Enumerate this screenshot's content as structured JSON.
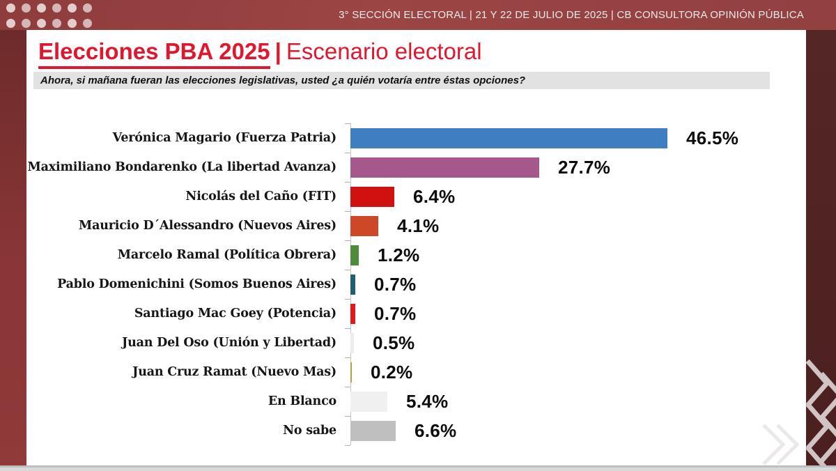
{
  "header": {
    "info_text": "3° SECCIÓN ELECTORAL  | 21 Y 22 DE JULIO DE 2025 | CB CONSULTORA OPINIÓN PÚBLICA"
  },
  "title": {
    "highlight": "Elecciones PBA 2025",
    "separator": "|",
    "rest": "Escenario electoral",
    "accent_color": "#e0172f"
  },
  "question": "Ahora, si mañana fueran las elecciones legislativas, usted ¿a quién votaría entre éstas opciones?",
  "theme": {
    "header_maroon": "#9a4343",
    "frame_maroon_dark": "#4c2020",
    "frame_maroon_left": "#8a3636",
    "question_bg": "#e2e2e2",
    "value_label_color": "#0c0c0c"
  },
  "chart_data": {
    "type": "bar",
    "orientation": "horizontal",
    "title": "Escenario electoral - intención de voto",
    "categories": [
      "Verónica Magario (Fuerza Patria)",
      "Maximiliano Bondarenko (La libertad Avanza)",
      "Nicolás del Caño (FIT)",
      "Mauricio D´Alessandro (Nuevos Aires)",
      "Marcelo Ramal (Política Obrera)",
      "Pablo Domenichini (Somos Buenos Aires)",
      "Santiago Mac Goey (Potencia)",
      "Juan Del Oso (Unión y Libertad)",
      "Juan Cruz Ramat (Nuevo Mas)",
      "En Blanco",
      "No sabe"
    ],
    "values": [
      46.5,
      27.7,
      6.4,
      4.1,
      1.2,
      0.7,
      0.7,
      0.5,
      0.2,
      5.4,
      6.6
    ],
    "value_labels": [
      "46.5%",
      "27.7%",
      "6.4%",
      "4.1%",
      "1.2%",
      "0.7%",
      "0.7%",
      "0.5%",
      "0.2%",
      "5.4%",
      "6.6%"
    ],
    "bar_colors": [
      "#3f7fc1",
      "#a6578b",
      "#cf1110",
      "#ce4727",
      "#4e8b3b",
      "#23606f",
      "#e31919",
      "#ececec",
      "#b1a13f",
      "#f1f0f0",
      "#c0bfbf"
    ],
    "xlabel": "",
    "ylabel": "",
    "xlim": [
      0,
      50
    ],
    "grid": false,
    "legend": "none",
    "data_labels": "outside-end"
  }
}
